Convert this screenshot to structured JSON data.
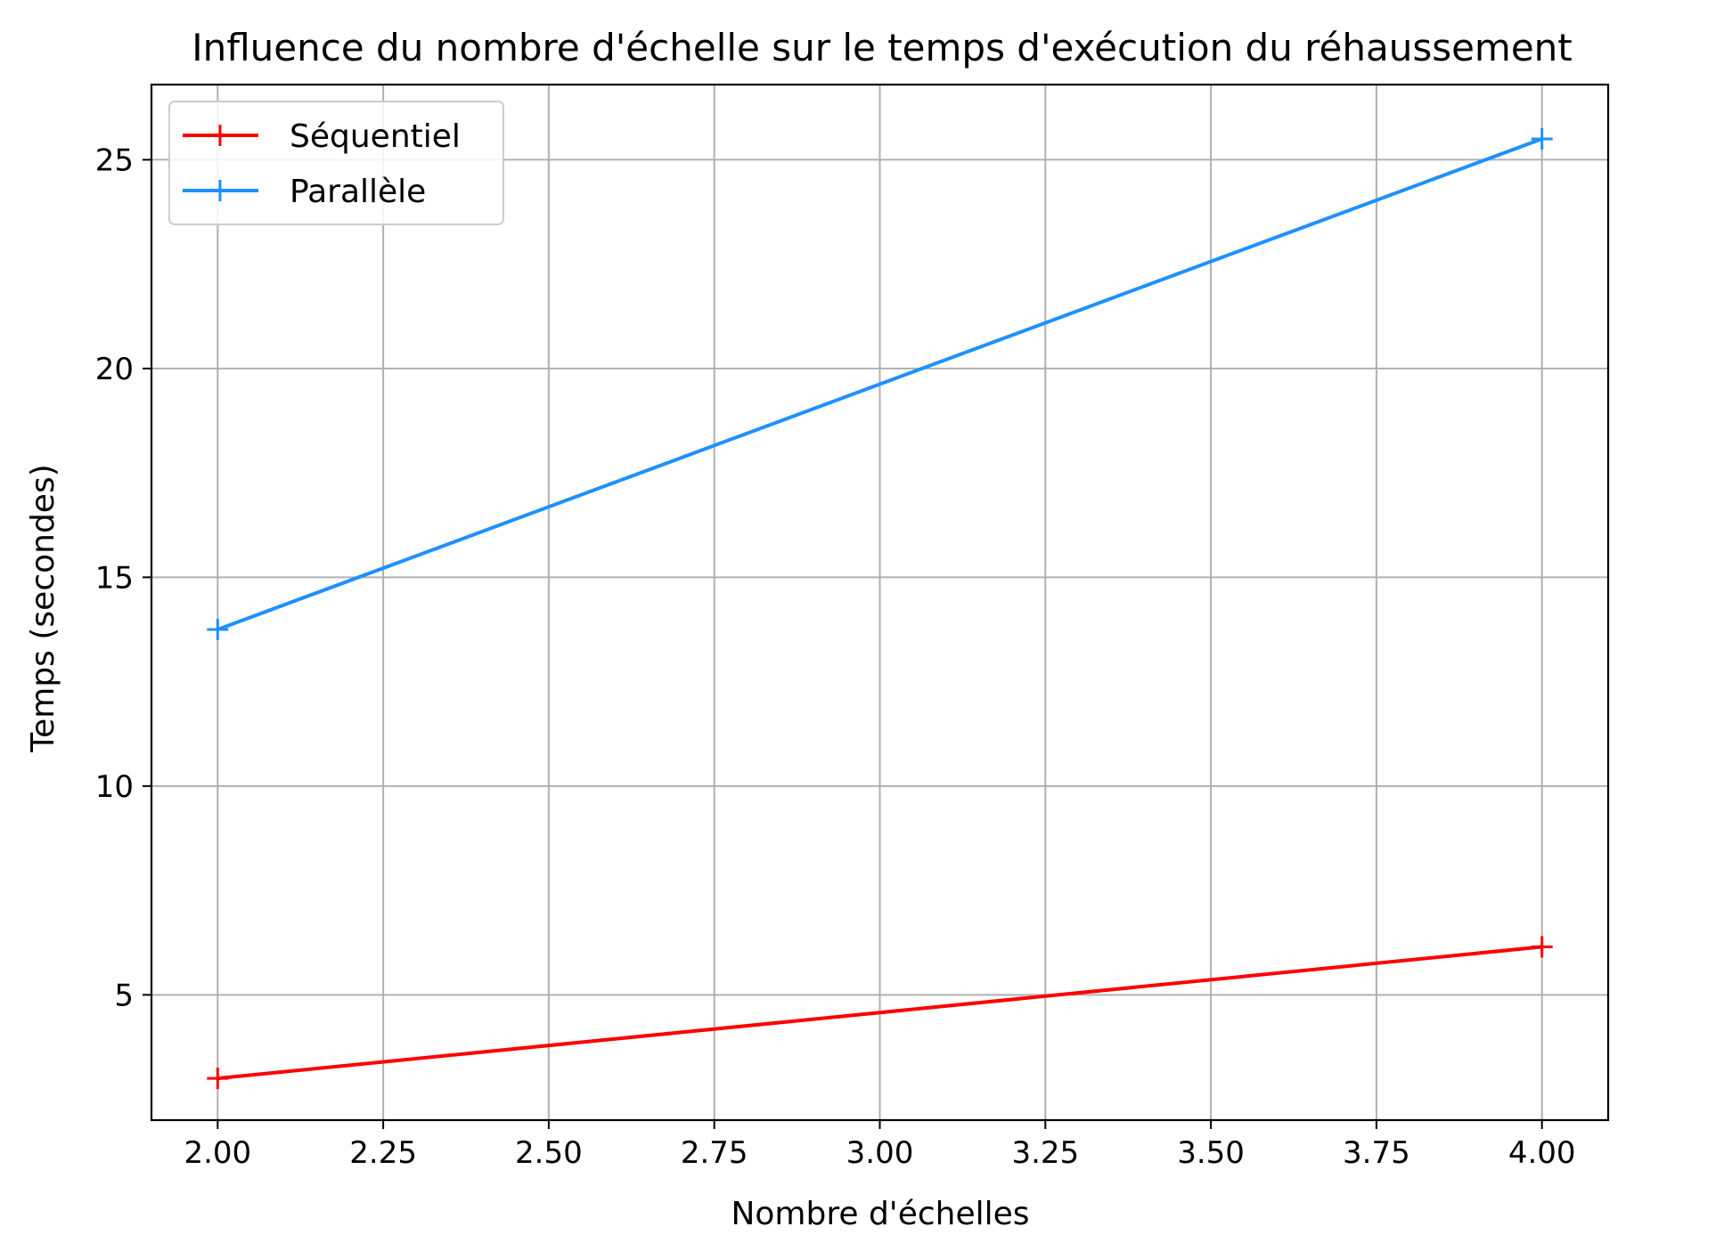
{
  "chart_data": {
    "type": "line",
    "title": "Influence du nombre d'échelle sur le temps d'exécution du réhaussement",
    "xlabel": "Nombre d'échelles",
    "ylabel": "Temps (secondes)",
    "xlim": [
      1.9,
      4.1
    ],
    "ylim": [
      2.0,
      26.8
    ],
    "xticks": [
      2.0,
      2.25,
      2.5,
      2.75,
      3.0,
      3.25,
      3.5,
      3.75,
      4.0
    ],
    "xtick_labels": [
      "2.00",
      "2.25",
      "2.50",
      "2.75",
      "3.00",
      "3.25",
      "3.50",
      "3.75",
      "4.00"
    ],
    "yticks": [
      5,
      10,
      15,
      20,
      25
    ],
    "ytick_labels": [
      "5",
      "10",
      "15",
      "20",
      "25"
    ],
    "grid": true,
    "legend_position": "top-left",
    "series": [
      {
        "name": "Séquentiel",
        "color": "#ff0000",
        "marker": "plus",
        "x": [
          2,
          4
        ],
        "y": [
          3.0,
          6.15
        ]
      },
      {
        "name": "Parallèle",
        "color": "#1e90ff",
        "marker": "plus",
        "x": [
          2,
          4
        ],
        "y": [
          13.75,
          25.5
        ]
      }
    ]
  }
}
